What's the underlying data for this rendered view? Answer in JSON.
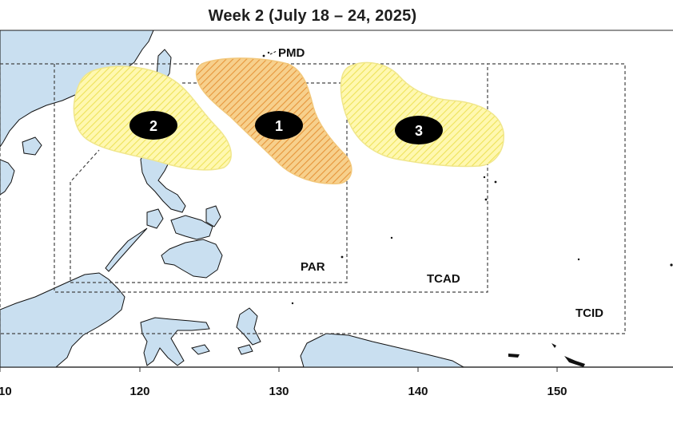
{
  "title": "Week 2 (July 18 – 24, 2025)",
  "regions": {
    "pmd": "PMD",
    "par": "PAR",
    "tcad": "TCAD",
    "tcid": "TCID"
  },
  "longitude_ticks": [
    "10",
    "120",
    "130",
    "140",
    "150"
  ],
  "cyclone_areas": [
    {
      "label": "1",
      "likelihood": "higher",
      "fill_color": "#f5c27a",
      "hatch_color": "#e79a3a"
    },
    {
      "label": "2",
      "likelihood": "lower",
      "fill_color": "#fff7a6",
      "hatch_color": "#eee35a"
    },
    {
      "label": "3",
      "likelihood": "lower",
      "fill_color": "#fff7a6",
      "hatch_color": "#eee35a"
    }
  ],
  "colors": {
    "land": "#c9dff0",
    "coast": "#111111",
    "boundary": "#444444",
    "marker": "#000000"
  }
}
